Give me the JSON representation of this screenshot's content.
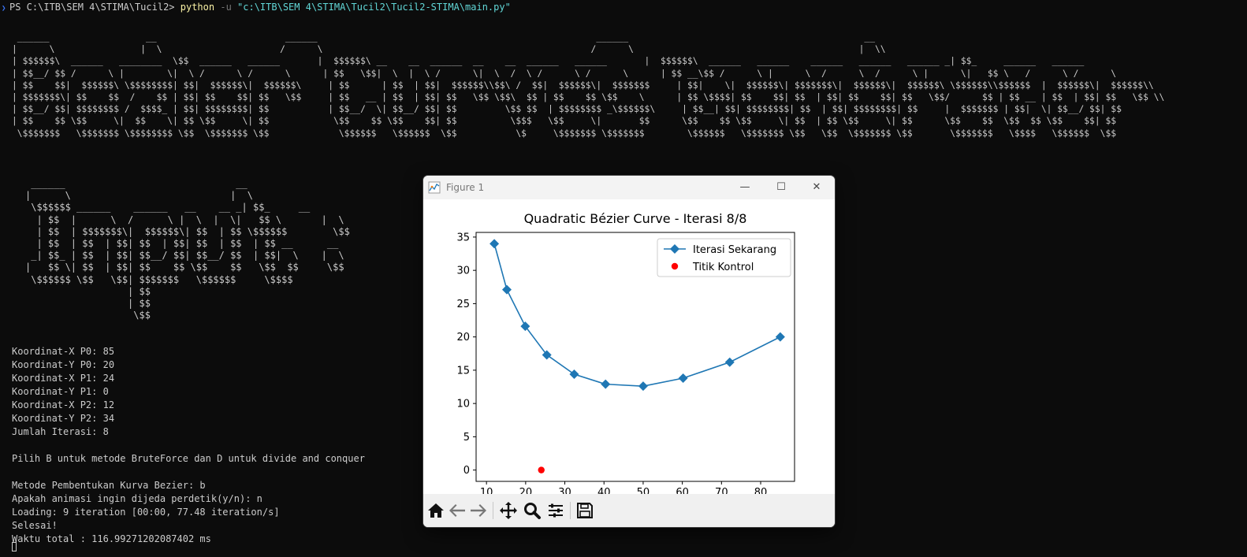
{
  "terminal": {
    "prompt": "PS C:\\ITB\\SEM 4\\STIMA\\Tucil2>",
    "command_exe": "python",
    "command_flag": "-u",
    "command_arg": "\"c:\\ITB\\SEM 4\\STIMA\\Tucil2\\Tucil2-STIMA\\main.py\"",
    "banner1_art": " ______                  __                        ______                                                    ______                                            __      \n|      \\                |  \\                      /      \\                                                  /      \\                                          |  \\\\    \n| $$$$$$\\  ______   ________  \\$$  ______   ______       |  $$$$$$\\ __    __  ______  __    __  ______   ______       |  $$$$$$\\  ______   ______    ______   ______   ______ _| $$_     ______   ______  \n| $$__/ $$ /      \\ |        \\|  \\ /      \\ /      \\      | $$   \\$$|  \\  |  \\ /      \\|  \\  /  \\ /      \\ /      \\      | $$ __\\$$ /      \\ |      \\  /      \\  /      \\ |      \\|   $$ \\   /      \\ /      \\ \n| $$    $$|  $$$$$$\\ \\$$$$$$$$| $$|  $$$$$$\\|  $$$$$$\\     | $$      | $$  | $$|  $$$$$$\\\\$$\\ /  $$|  $$$$$$\\|  $$$$$$$     | $$|    \\|  $$$$$$\\| $$$$$$$\\|  $$$$$$\\|  $$$$$$\\ \\$$$$$$\\\\$$$$$$  |  $$$$$$\\|  $$$$$$\\\\ \n| $$$$$$$\\| $$    $$  /    $$ | $$| $$    $$| $$   \\$$     | $$   __ | $$  | $$| $$   \\$$ \\$$\\  $$ | $$    $$ \\$$    \\      | $$ \\$$$$| $$    $$| $$  | $$| $$    $$| $$   \\$$/      $$ | $$ __ | $$  | $$| $$   \\$$ \\\\\n| $$__/ $$| $$$$$$$$ /  $$$$_ | $$| $$$$$$$$| $$           | $$__/  \\| $$__/ $$| $$         \\$$ $$  | $$$$$$$$ _\\$$$$$$\\     | $$__| $$| $$$$$$$$| $$  | $$| $$$$$$$$| $$     |  $$$$$$$ | $$|  \\| $$__/ $$| $$      \n| $$    $$ \\$$     \\|  $$    \\| $$ \\$$     \\| $$            \\$$    $$ \\$$    $$| $$          \\$$$   \\$$     \\|       $$      \\$$    $$ \\$$     \\| $$  | $$ \\$$     \\| $$      \\$$    $$  \\$$  $$ \\$$    $$| $$      \n \\$$$$$$$   \\$$$$$$$ \\$$$$$$$$ \\$$  \\$$$$$$$ \\$$             \\$$$$$$   \\$$$$$$  \\$$           \\$     \\$$$$$$$ \\$$$$$$$        \\$$$$$$   \\$$$$$$$ \\$$   \\$$  \\$$$$$$$ \\$$       \\$$$$$$$   \\$$$$   \\$$$$$$  \\$$      ",
    "banner2_art": " ______                              __      \n|      \\                            |  \\     \n \\$$$$$$ ______    ______   __    __ _| $$_     __   \n  | $$  |      \\  /      \\ |  \\  |  \\|   $$ \\       |  \\ \n  | $$  | $$$$$$$\\|  $$$$$$\\| $$  | $$ \\$$$$$$        \\$$ \n  | $$  | $$  | $$| $$  | $$| $$  | $$  | $$ __      __  \n _| $$_ | $$  | $$| $$__/ $$| $$__/ $$  | $$|  \\    |  \\ \n|   $$ \\| $$  | $$| $$    $$ \\$$    $$   \\$$  $$     \\$$ \n \\$$$$$$ \\$$   \\$$| $$$$$$$   \\$$$$$$     \\$$$$          \n                  | $$                              \n                  | $$                              \n                   \\$$                              ",
    "output_lines": [
      "Koordinat-X P0: 85",
      "Koordinat-Y P0: 20",
      "Koordinat-X P1: 24",
      "Koordinat-Y P1: 0",
      "Koordinat-X P2: 12",
      "Koordinat-Y P2: 34",
      "Jumlah Iterasi: 8",
      "",
      "Pilih B untuk metode BruteForce dan D untuk divide and conquer",
      "",
      "Metode Pembentukan Kurva Bezier: b",
      "Apakah animasi ingin dijeda perdetik(y/n): n",
      "Loading: 9 iteration [00:00, 77.48 iteration/s]",
      "Selesai!",
      "Waktu total : 116.99271202087402 ms"
    ]
  },
  "figure_window": {
    "title": "Figure 1",
    "controls": {
      "minimize": "—",
      "maximize": "☐",
      "close": "✕"
    },
    "toolbar_icons": [
      "home-icon",
      "back-arrow-icon",
      "forward-arrow-icon",
      "pan-move-icon",
      "zoom-magnifier-icon",
      "configure-subplots-icon",
      "save-floppy-icon"
    ]
  },
  "colors": {
    "line": "#1f77b4",
    "control": "#ff0000",
    "terminal_bg": "#0c0c0c",
    "terminal_text": "#cccccc"
  },
  "chart_data": {
    "type": "line",
    "title": "Quadratic Bézier Curve - Iterasi 8/8",
    "xlabel": "",
    "ylabel": "",
    "xlim": [
      7.35,
      88.65
    ],
    "ylim": [
      -1.7,
      35.7
    ],
    "xticks": [
      10,
      20,
      30,
      40,
      50,
      60,
      70,
      80
    ],
    "yticks": [
      0,
      5,
      10,
      15,
      20,
      25,
      30,
      35
    ],
    "legend_position": "top-right",
    "series": [
      {
        "name": "Iterasi Sekarang",
        "marker": "diamond",
        "x": [
          12,
          15.2,
          19.9,
          25.4,
          32.4,
          40.4,
          50,
          60.2,
          72.1,
          85
        ],
        "y": [
          34,
          27.1,
          21.6,
          17.3,
          14.4,
          12.9,
          12.6,
          13.8,
          16.2,
          20
        ]
      },
      {
        "name": "Titik Kontrol",
        "marker": "circle",
        "x": [
          24
        ],
        "y": [
          0
        ]
      }
    ]
  }
}
